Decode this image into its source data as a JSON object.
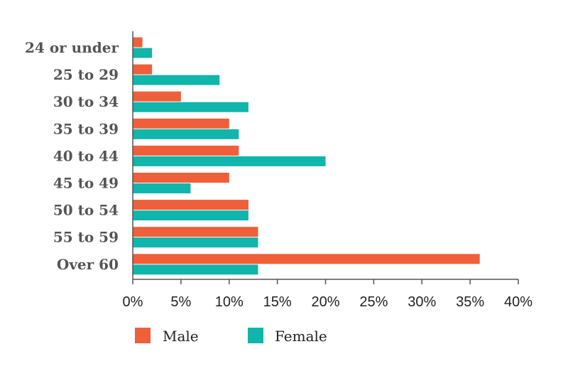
{
  "chart_data": {
    "type": "bar",
    "orientation": "horizontal",
    "categories": [
      "24 or under",
      "25 to 29",
      "30 to 34",
      "35 to 39",
      "40 to 44",
      "45 to 49",
      "50 to 54",
      "55 to 59",
      "Over 60"
    ],
    "series": [
      {
        "name": "Male",
        "color": "#ee5f3a",
        "values": [
          1,
          2,
          5,
          10,
          11,
          10,
          12,
          13,
          36
        ]
      },
      {
        "name": "Female",
        "color": "#10b5ab",
        "values": [
          2,
          9,
          12,
          11,
          20,
          6,
          12,
          13,
          13
        ]
      }
    ],
    "xlim": [
      0,
      40
    ],
    "xticks": [
      0,
      5,
      10,
      15,
      20,
      25,
      30,
      35,
      40
    ],
    "xtick_labels": [
      "0%",
      "5%",
      "10%",
      "15%",
      "20%",
      "25%",
      "30%",
      "35%",
      "40%"
    ],
    "grid": false,
    "legend_position": "bottom-left",
    "title": "",
    "xlabel": "",
    "ylabel": ""
  }
}
